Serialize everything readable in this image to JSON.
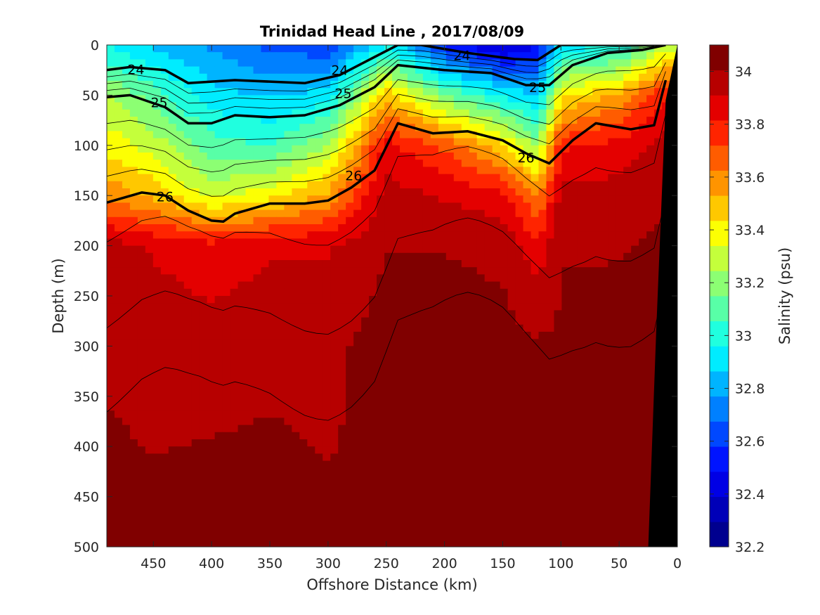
{
  "chart_data": {
    "type": "heatmap",
    "title": "Trinidad Head Line , 2017/08/09",
    "xlabel": "Offshore Distance (km)",
    "ylabel": "Depth (m)",
    "colorbar_label": "Salinity (psu)",
    "xlim": [
      490,
      0
    ],
    "ylim": [
      0,
      500
    ],
    "x_ticks": [
      450,
      400,
      350,
      300,
      250,
      200,
      150,
      100,
      50,
      0
    ],
    "y_ticks": [
      0,
      50,
      100,
      150,
      200,
      250,
      300,
      350,
      400,
      450,
      500
    ],
    "colorbar_range": [
      32.2,
      34.1
    ],
    "colorbar_ticks": [
      32.2,
      32.4,
      32.6,
      32.8,
      33,
      33.2,
      33.4,
      33.6,
      33.8,
      34
    ],
    "colors": [
      "#00008f",
      "#0000b8",
      "#0000e5",
      "#0014ff",
      "#0048ff",
      "#0080ff",
      "#00b4ff",
      "#00ecff",
      "#20ffdf",
      "#58ffa7",
      "#8cff73",
      "#c4ff3b",
      "#fcff03",
      "#ffc800",
      "#ff9400",
      "#ff5c00",
      "#ff2400",
      "#e40000",
      "#b70000",
      "#800000"
    ],
    "salinity_field": {
      "x_km": [
        490,
        450,
        400,
        350,
        300,
        250,
        200,
        150,
        120,
        100,
        50,
        10
      ],
      "depth_m": [
        0,
        50,
        100,
        150,
        200,
        300,
        400,
        500
      ],
      "values": [
        [
          32.95,
          32.85,
          32.75,
          32.65,
          32.6,
          32.95,
          32.55,
          32.35,
          32.5,
          32.9,
          32.95,
          33.3
        ],
        [
          33.25,
          33.1,
          32.9,
          32.85,
          32.9,
          33.5,
          33.15,
          32.95,
          32.85,
          33.4,
          33.55,
          33.8
        ],
        [
          33.4,
          33.3,
          33.1,
          33.05,
          33.25,
          33.85,
          33.7,
          33.45,
          33.2,
          33.8,
          33.85,
          33.95
        ],
        [
          33.6,
          33.5,
          33.3,
          33.4,
          33.55,
          33.95,
          33.9,
          33.85,
          33.6,
          33.95,
          33.95,
          34.0
        ],
        [
          33.95,
          33.9,
          33.85,
          33.9,
          33.9,
          34.0,
          34.0,
          33.98,
          33.85,
          34.0,
          34.0,
          34.02
        ],
        [
          33.98,
          33.97,
          33.96,
          33.97,
          33.98,
          34.05,
          34.06,
          34.04,
          34.02,
          34.02,
          34.03,
          34.02
        ],
        [
          34.02,
          34.0,
          34.01,
          34.02,
          34.0,
          34.03,
          34.08,
          34.06,
          34.03,
          34.04,
          34.04,
          34.03
        ],
        [
          34.04,
          34.06,
          34.05,
          34.04,
          34.04,
          34.07,
          34.12,
          34.11,
          34.05,
          34.08,
          34.07,
          34.05
        ]
      ]
    },
    "density_contours": [
      {
        "label": "24",
        "x_km": [
          490,
          470,
          440,
          420,
          380,
          320,
          290,
          260,
          240,
          220,
          180,
          140,
          120,
          100,
          70,
          40,
          20
        ],
        "depth_m": [
          25,
          22,
          25,
          38,
          35,
          38,
          30,
          12,
          0,
          0,
          8,
          14,
          15,
          0,
          0,
          0,
          0
        ]
      },
      {
        "label": "25",
        "x_km": [
          490,
          470,
          440,
          420,
          400,
          380,
          350,
          320,
          290,
          260,
          240,
          200,
          160,
          130,
          110,
          90,
          60,
          30,
          10
        ],
        "depth_m": [
          52,
          50,
          62,
          78,
          78,
          70,
          72,
          70,
          60,
          42,
          20,
          25,
          28,
          40,
          40,
          20,
          8,
          5,
          0
        ]
      },
      {
        "label": "26",
        "x_km": [
          490,
          460,
          440,
          420,
          400,
          390,
          380,
          350,
          320,
          300,
          280,
          260,
          240,
          210,
          180,
          150,
          130,
          110,
          90,
          70,
          40,
          20,
          10
        ],
        "depth_m": [
          157,
          147,
          150,
          165,
          175,
          176,
          168,
          158,
          158,
          155,
          142,
          125,
          78,
          88,
          86,
          95,
          108,
          118,
          95,
          78,
          84,
          80,
          35
        ]
      }
    ],
    "contour_labels": [
      {
        "text": "24",
        "x_km": 465,
        "depth_m": 24
      },
      {
        "text": "24",
        "x_km": 290,
        "depth_m": 25
      },
      {
        "text": "24",
        "x_km": 185,
        "depth_m": 10
      },
      {
        "text": "25",
        "x_km": 445,
        "depth_m": 57
      },
      {
        "text": "25",
        "x_km": 287,
        "depth_m": 48
      },
      {
        "text": "25",
        "x_km": 120,
        "depth_m": 42
      },
      {
        "text": "26",
        "x_km": 440,
        "depth_m": 151
      },
      {
        "text": "26",
        "x_km": 278,
        "depth_m": 130
      },
      {
        "text": "26",
        "x_km": 130,
        "depth_m": 112
      }
    ],
    "bathymetry_mask": {
      "x_km": [
        10,
        0,
        0,
        25,
        18
      ],
      "depth_m": [
        55,
        0,
        500,
        500,
        280
      ]
    }
  }
}
